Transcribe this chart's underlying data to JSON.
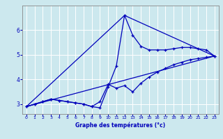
{
  "xlabel": "Graphe des températures (°c)",
  "xlim": [
    -0.5,
    23.5
  ],
  "ylim": [
    2.6,
    7.0
  ],
  "yticks": [
    3,
    4,
    5,
    6
  ],
  "xticks": [
    0,
    1,
    2,
    3,
    4,
    5,
    6,
    7,
    8,
    9,
    10,
    11,
    12,
    13,
    14,
    15,
    16,
    17,
    18,
    19,
    20,
    21,
    22,
    23
  ],
  "bg_color": "#cce8ee",
  "line_color": "#0000bb",
  "series1_x": [
    0,
    1,
    2,
    3,
    4,
    5,
    6,
    7,
    8,
    9,
    10,
    11,
    12,
    13,
    14,
    15,
    16,
    17,
    18,
    19,
    20,
    21,
    22,
    23
  ],
  "series1_y": [
    2.9,
    3.0,
    3.1,
    3.2,
    3.15,
    3.1,
    3.05,
    3.0,
    2.9,
    2.85,
    3.7,
    4.55,
    6.6,
    5.8,
    5.35,
    5.2,
    5.2,
    5.2,
    5.25,
    5.3,
    5.3,
    5.25,
    5.2,
    4.95
  ],
  "series2_x": [
    0,
    1,
    2,
    3,
    4,
    5,
    6,
    7,
    8,
    9,
    10,
    11,
    12,
    13,
    14,
    15,
    16,
    17,
    18,
    19,
    20,
    21,
    22,
    23
  ],
  "series2_y": [
    2.9,
    3.0,
    3.1,
    3.2,
    3.15,
    3.1,
    3.05,
    3.0,
    2.9,
    3.1,
    3.8,
    3.65,
    3.75,
    3.5,
    3.85,
    4.1,
    4.3,
    4.45,
    4.6,
    4.7,
    4.8,
    4.85,
    4.9,
    4.95
  ],
  "series3_x": [
    0,
    23
  ],
  "series3_y": [
    2.9,
    4.95
  ],
  "series4_x": [
    0,
    12,
    23
  ],
  "series4_y": [
    2.9,
    6.6,
    4.95
  ]
}
